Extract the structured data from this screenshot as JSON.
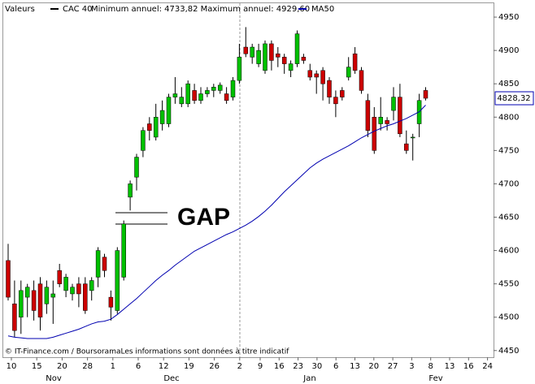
{
  "chart_data": {
    "type": "candlestick",
    "header": "Valeurs",
    "name": "CAC 40",
    "subtitle": "Minimum annuel: 4733,82 Maximum annuel: 4929,60",
    "annotation": "GAP",
    "footer": "© IT-Finance.com / BoursoramaLes informations sont données à titre indicatif",
    "up_color": "#00c000",
    "down_color": "#cc0000",
    "open": [
      4585,
      4520,
      4500,
      4530,
      4540,
      4550,
      4520,
      4530,
      4570,
      4540,
      4535,
      4550,
      4550,
      4540,
      4560,
      4590,
      4530,
      4510,
      4560,
      4680,
      4710,
      4750,
      4790,
      4770,
      4790,
      4790,
      4830,
      4820,
      4820,
      4840,
      4825,
      4835,
      4840,
      4840,
      4835,
      4830,
      4855,
      4905,
      4890,
      4880,
      4870,
      4910,
      4895,
      4890,
      4870,
      4880,
      4890,
      4870,
      4865,
      4870,
      4855,
      4830,
      4840,
      4860,
      4895,
      4870,
      4825,
      4800,
      4790,
      4795,
      4810,
      4830,
      4760,
      4770,
      4790,
      4840
    ],
    "high": [
      4610,
      4555,
      4555,
      4550,
      4555,
      4560,
      4555,
      4555,
      4580,
      4565,
      4550,
      4560,
      4560,
      4560,
      4605,
      4595,
      4540,
      4605,
      4645,
      4705,
      4745,
      4785,
      4800,
      4820,
      4825,
      4835,
      4860,
      4845,
      4855,
      4850,
      4845,
      4845,
      4850,
      4852,
      4845,
      4860,
      4910,
      4935,
      4910,
      4910,
      4915,
      4915,
      4905,
      4895,
      4885,
      4930,
      4895,
      4880,
      4870,
      4875,
      4860,
      4840,
      4845,
      4890,
      4905,
      4875,
      4835,
      4815,
      4830,
      4800,
      4845,
      4850,
      4780,
      4775,
      4835,
      4845
    ],
    "low": [
      4525,
      4470,
      4475,
      4500,
      4495,
      4480,
      4505,
      4490,
      4545,
      4530,
      4525,
      4515,
      4505,
      4525,
      4545,
      4560,
      4495,
      4505,
      4555,
      4660,
      4690,
      4740,
      4765,
      4765,
      4780,
      4785,
      4820,
      4815,
      4815,
      4820,
      4820,
      4830,
      4830,
      4835,
      4820,
      4825,
      4850,
      4890,
      4880,
      4875,
      4865,
      4870,
      4875,
      4865,
      4860,
      4875,
      4880,
      4855,
      4835,
      4825,
      4820,
      4800,
      4825,
      4855,
      4865,
      4835,
      4770,
      4745,
      4780,
      4780,
      4795,
      4770,
      4745,
      4735,
      4770,
      4825
    ],
    "close": [
      4530,
      4480,
      4540,
      4545,
      4510,
      4500,
      4545,
      4535,
      4550,
      4560,
      4545,
      4535,
      4510,
      4555,
      4600,
      4570,
      4515,
      4600,
      4640,
      4700,
      4740,
      4780,
      4780,
      4800,
      4810,
      4830,
      4835,
      4830,
      4850,
      4825,
      4835,
      4840,
      4845,
      4848,
      4825,
      4855,
      4890,
      4895,
      4905,
      4900,
      4910,
      4885,
      4890,
      4880,
      4880,
      4925,
      4885,
      4860,
      4860,
      4850,
      4830,
      4820,
      4830,
      4875,
      4870,
      4840,
      4780,
      4750,
      4800,
      4790,
      4830,
      4775,
      4750,
      4770,
      4825,
      4828.32
    ],
    "last_close_label": "4828,32",
    "series": [
      {
        "name": "MA50",
        "color": "#0000b0",
        "values": [
          4472,
          4470,
          4469,
          4468,
          4468,
          4468,
          4468,
          4470,
          4473,
          4476,
          4479,
          4482,
          4486,
          4490,
          4493,
          4494,
          4497,
          4504,
          4512,
          4520,
          4528,
          4537,
          4546,
          4555,
          4563,
          4570,
          4578,
          4585,
          4592,
          4599,
          4604,
          4609,
          4614,
          4619,
          4624,
          4628,
          4633,
          4638,
          4644,
          4651,
          4659,
          4668,
          4678,
          4688,
          4697,
          4706,
          4715,
          4724,
          4731,
          4737,
          4742,
          4747,
          4752,
          4757,
          4763,
          4769,
          4774,
          4779,
          4783,
          4787,
          4790,
          4794,
          4798,
          4803,
          4808,
          4818
        ]
      }
    ],
    "xticks": [
      "10",
      "15",
      "20",
      "28",
      "1",
      "6",
      "12",
      "19",
      "26",
      "2",
      "9",
      "16",
      "23",
      "30",
      "6",
      "13",
      "20",
      "27",
      "3",
      "8",
      "13",
      "16",
      "24"
    ],
    "months": [
      "Nov",
      "Dec",
      "Jan",
      "Fev"
    ],
    "ylim": [
      4440,
      4972
    ],
    "yticks": [
      4450,
      4500,
      4550,
      4600,
      4650,
      4700,
      4750,
      4800,
      4850,
      4900,
      4950
    ]
  }
}
